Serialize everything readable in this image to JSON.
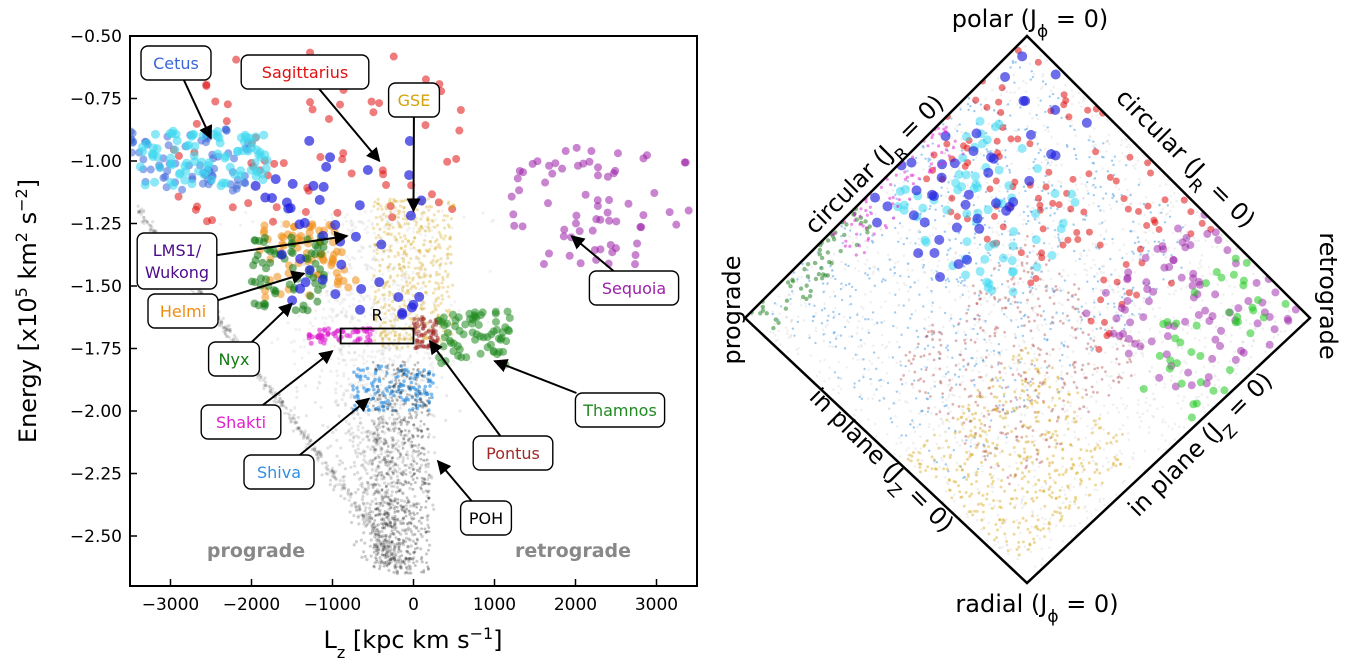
{
  "chart_data": [
    {
      "type": "scatter",
      "xlabel": "L_z [kpc km s^-1]",
      "ylabel": "Energy [x10^5 km^2 s^-2]",
      "xlim": [
        -3500,
        3500
      ],
      "ylim": [
        -2.7,
        -0.5
      ],
      "xticks": [
        -3000,
        -2000,
        -1000,
        0,
        1000,
        2000,
        3000
      ],
      "xtick_labels": [
        "−3000",
        "−2000",
        "−1000",
        "0",
        "1000",
        "2000",
        "3000"
      ],
      "yticks": [
        -0.5,
        -0.75,
        -1.0,
        -1.25,
        -1.5,
        -1.75,
        -2.0,
        -2.25,
        -2.5
      ],
      "ytick_labels": [
        "−0.50",
        "−0.75",
        "−1.00",
        "−1.25",
        "−1.50",
        "−1.75",
        "−2.00",
        "−2.25",
        "−2.50"
      ],
      "direction_labels": {
        "prograde": "prograde",
        "retrograde": "retrograde"
      },
      "box_label": "R",
      "box": {
        "x": [
          -900,
          0
        ],
        "y": [
          -1.67,
          -1.73
        ]
      },
      "structures": [
        {
          "label": "Cetus",
          "color": "#3a66d8",
          "arrow_to": [
            -2500,
            -0.91
          ],
          "clump": {
            "x": [
              -3500,
              -2000
            ],
            "y": [
              -0.87,
              -1.12
            ]
          }
        },
        {
          "label": "Sagittarius",
          "color": "#e01010",
          "arrow_to": [
            -420,
            -1.0
          ],
          "clump": {
            "x": [
              -3000,
              600
            ],
            "y": [
              -0.55,
              -1.25
            ]
          }
        },
        {
          "label": "GSE",
          "color": "#d4a20a",
          "arrow_to": [
            0,
            -1.2
          ],
          "clump": {
            "x": [
              -500,
              500
            ],
            "y": [
              -1.15,
              -1.75
            ]
          }
        },
        {
          "label": "Sequoia",
          "color": "#9b1fa8",
          "arrow_to": [
            1950,
            -1.3
          ],
          "clump": {
            "x": [
              1200,
              3400
            ],
            "y": [
              -0.92,
              -1.42
            ]
          }
        },
        {
          "label": "LMS1/",
          "label2": "Wukong",
          "color": "#4b0b8a",
          "arrow_to": [
            -820,
            -1.3
          ]
        },
        {
          "label": "Helmi",
          "color": "#f08c10",
          "arrow_to": [
            -1350,
            -1.45
          ],
          "clump": {
            "x": [
              -1900,
              -700
            ],
            "y": [
              -1.25,
              -1.55
            ]
          }
        },
        {
          "label": "Nyx",
          "color": "#137a13",
          "arrow_to": [
            -1500,
            -1.57
          ],
          "clump": {
            "x": [
              -2000,
              -1100
            ],
            "y": [
              -1.3,
              -1.6
            ]
          }
        },
        {
          "label": "Thamnos",
          "color": "#1f8a1f",
          "arrow_to": [
            1000,
            -1.8
          ],
          "clump": {
            "x": [
              300,
              1200
            ],
            "y": [
              -1.6,
              -1.82
            ]
          }
        },
        {
          "label": "Shakti",
          "color": "#e01fd0",
          "arrow_to": [
            -1000,
            -1.76
          ],
          "clump": {
            "x": [
              -1300,
              -500
            ],
            "y": [
              -1.67,
              -1.73
            ]
          }
        },
        {
          "label": "Pontus",
          "color": "#a02828",
          "arrow_to": [
            200,
            -1.72
          ],
          "clump": {
            "x": [
              0,
              300
            ],
            "y": [
              -1.62,
              -1.75
            ]
          }
        },
        {
          "label": "Shiva",
          "color": "#2f8fe0",
          "arrow_to": [
            -550,
            -1.95
          ],
          "clump": {
            "x": [
              -750,
              250
            ],
            "y": [
              -1.82,
              -2.0
            ]
          }
        },
        {
          "label": "POH",
          "color": "#000000",
          "arrow_to": [
            300,
            -2.2
          ],
          "clump": {
            "x": [
              -500,
              200
            ],
            "y": [
              -1.8,
              -2.65
            ]
          }
        }
      ]
    },
    {
      "type": "scatter",
      "subtype": "action-diamond",
      "corner_labels": {
        "top": "polar (J_ϕ = 0)",
        "bottom": "radial (J_ϕ = 0)",
        "left": "prograde",
        "right": "retrograde"
      },
      "edge_labels": {
        "upper_left": "circular (J_R = 0)",
        "upper_right": "circular (J_R = 0)",
        "lower_left": "in plane (J_Z = 0)",
        "lower_right": "in plane (J_Z = 0)"
      },
      "series_colors": [
        "#3a66d8",
        "#e01010",
        "#d4a20a",
        "#9b1fa8",
        "#f08c10",
        "#137a13",
        "#1fc81f",
        "#e01fd0",
        "#a02828",
        "#2f8fe0",
        "#3dd8f0",
        "#2020e0"
      ]
    }
  ]
}
